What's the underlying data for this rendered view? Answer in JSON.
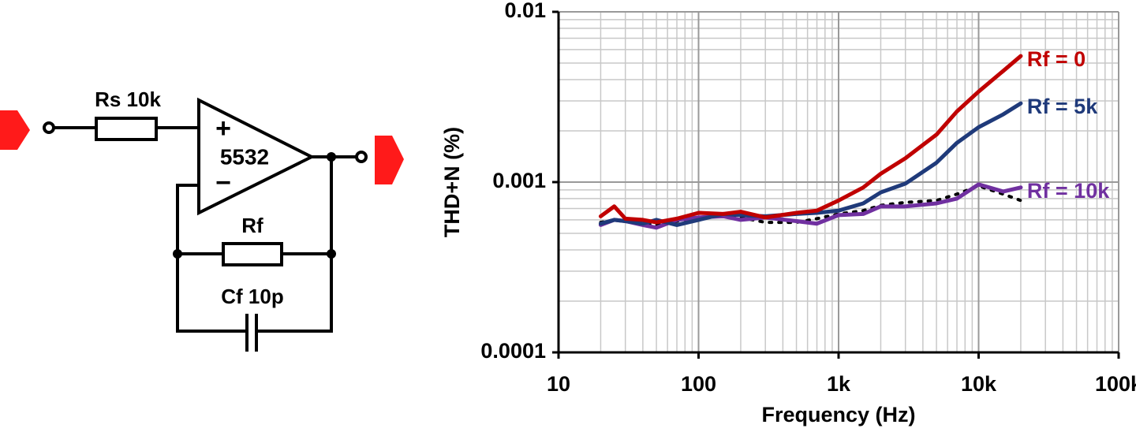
{
  "diagram": {
    "labels": [
      "Rs 10k",
      "+",
      "5532",
      "−",
      "Rf",
      "Cf 10p"
    ]
  },
  "chart_data": {
    "type": "line",
    "xlabel": "Frequency (Hz)",
    "ylabel": "THD+N (%)",
    "x": [
      20,
      25,
      30,
      40,
      50,
      70,
      100,
      150,
      200,
      300,
      500,
      700,
      1000,
      1500,
      2000,
      3000,
      5000,
      7000,
      10000,
      15000,
      20000
    ],
    "series": [
      {
        "name": "Rf = 0",
        "color": "#c00000",
        "values": [
          0.00063,
          0.00072,
          0.00061,
          0.0006,
          0.00058,
          0.00061,
          0.00066,
          0.00065,
          0.00067,
          0.00062,
          0.00066,
          0.00068,
          0.00078,
          0.00093,
          0.00112,
          0.00138,
          0.0019,
          0.0026,
          0.0034,
          0.0045,
          0.0055
        ]
      },
      {
        "name": "Rf = 5k",
        "color": "#1f3a7a",
        "values": [
          0.00057,
          0.0006,
          0.00059,
          0.00057,
          0.0006,
          0.00056,
          0.0006,
          0.00065,
          0.00064,
          0.00063,
          0.00065,
          0.00066,
          0.00068,
          0.00075,
          0.00087,
          0.00098,
          0.0013,
          0.0017,
          0.0021,
          0.0025,
          0.0029
        ]
      },
      {
        "name": "Rf = 10k",
        "color": "#7030a0",
        "values": [
          0.00056,
          0.0006,
          0.00059,
          0.00056,
          0.00054,
          0.0006,
          0.00062,
          0.00063,
          0.0006,
          0.00062,
          0.00059,
          0.00057,
          0.00064,
          0.00065,
          0.00072,
          0.00072,
          0.00075,
          0.0008,
          0.00097,
          0.00088,
          0.00093
        ]
      },
      {
        "color": "#000000",
        "dashed": true,
        "values": [
          0.00058,
          0.0006,
          0.00059,
          0.00057,
          0.00056,
          0.00059,
          0.00062,
          0.00063,
          0.00062,
          0.00058,
          0.00058,
          0.00061,
          0.00065,
          0.00068,
          0.00073,
          0.00076,
          0.00078,
          0.00085,
          0.00095,
          0.00085,
          0.00078
        ]
      }
    ],
    "xlog": true,
    "ylog": true,
    "xlim": [
      10,
      100000
    ],
    "ylim": [
      0.0001,
      0.01
    ],
    "xticks": [
      10,
      100,
      {
        "value": 1000,
        "label": "1k"
      },
      {
        "value": 10000,
        "label": "10k"
      },
      {
        "value": 100000,
        "label": "100k"
      }
    ],
    "yticks": [
      0.0001,
      0.001,
      0.01
    ],
    "grid": true,
    "minor_grid": true
  }
}
